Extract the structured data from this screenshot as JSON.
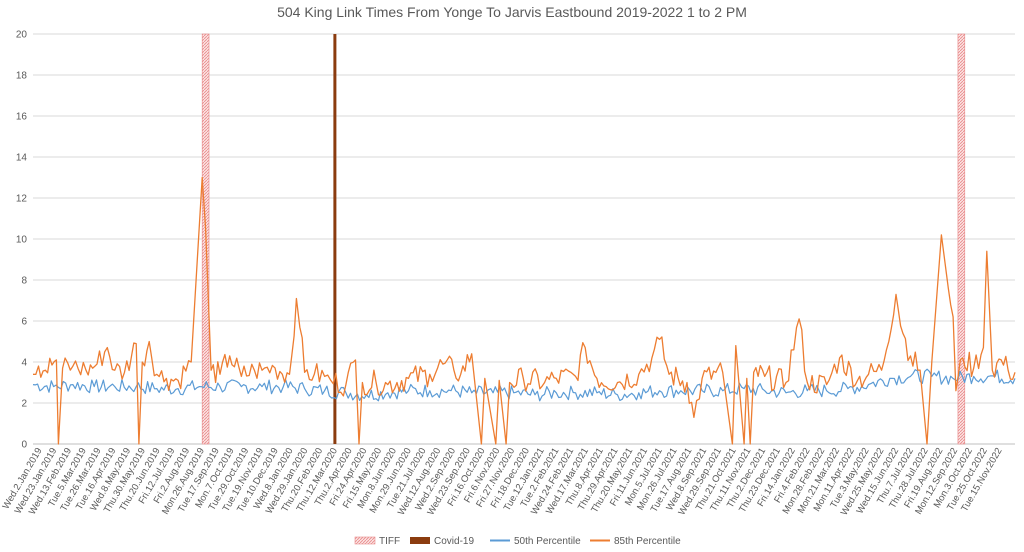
{
  "chart_data": {
    "type": "line",
    "title": "504 King Link Times From Yonge To Jarvis Eastbound 2019-2022 1 to 2 PM",
    "xlabel": "",
    "ylabel": "",
    "ylim": [
      0,
      20
    ],
    "y_ticks": [
      0,
      2,
      4,
      6,
      8,
      10,
      12,
      14,
      16,
      18,
      20
    ],
    "grid": true,
    "legend_position": "bottom",
    "x_range": [
      "2019-01-02",
      "2022-11-30"
    ],
    "x_tick_labels": [
      "Wed.2.Jan.2019",
      "Wed.23.Jan.2019",
      "Wed.13.Feb.2019",
      "Tue.5.Mar.2019",
      "Tue.26.Mar.2019",
      "Tue.16.Apr.2019",
      "Wed.8.May.2019",
      "Thu.30.May.2019",
      "Thu.20.Jun.2019",
      "Fri.12.Jul.2019",
      "Fri.2.Aug.2019",
      "Mon.26.Aug.2019",
      "Tue.17.Sep.2019",
      "Mon.7.Oct.2019",
      "Tue.29.Oct.2019",
      "Tue.19.Nov.2019",
      "Tue.10.Dec.2019",
      "Wed.8.Jan.2020",
      "Wed.29.Jan.2020",
      "Thu.20.Feb.2020",
      "Thu.12.Mar.2020",
      "Thu.2.Apr.2020",
      "Fri.24.Apr.2020",
      "Fri.15.May.2020",
      "Mon.8.Jun.2020",
      "Mon.29.Jun.2020",
      "Tue.21.Jul.2020",
      "Wed.12.Aug.2020",
      "Wed.2.Sep.2020",
      "Wed.23.Sep.2020",
      "Fri.16.Oct.2020",
      "Fri.6.Nov.2020",
      "Fri.27.Nov.2020",
      "Fri.18.Dec.2020",
      "Tue.12.Jan.2021",
      "Tue.2.Feb.2021",
      "Wed.24.Feb.2021",
      "Wed.17.Mar.2021",
      "Thu.8.Apr.2021",
      "Thu.29.Apr.2021",
      "Thu.20.May.2021",
      "Fri.11.Jun.2021",
      "Mon.5.Jul.2021",
      "Mon.26.Jul.2021",
      "Tue.17.Aug.2021",
      "Wed.8.Sep.2021",
      "Wed.29.Sep.2021",
      "Thu.21.Oct.2021",
      "Thu.11.Nov.2021",
      "Thu.2.Dec.2021",
      "Thu.23.Dec.2021",
      "Fri.14.Jan.2022",
      "Fri.4.Feb.2022",
      "Mon.28.Feb.2022",
      "Mon.21.Mar.2022",
      "Mon.11.Apr.2022",
      "Tue.3.May.2022",
      "Wed.25.May.2022",
      "Wed.15.Jun.2022",
      "Thu.7.Jul.2022",
      "Thu.28.Jul.2022",
      "Fri.19.Aug.2022",
      "Mon.12.Sep.2022",
      "Mon.3.Oct.2022",
      "Tue.25.Oct.2022",
      "Tue.15.Nov.2022"
    ],
    "series": [
      {
        "name": "TIFF",
        "kind": "band",
        "color": "#f4a7a7",
        "periods": [
          [
            "2019-09-05",
            "2019-09-15"
          ],
          [
            "2022-09-08",
            "2022-09-18"
          ]
        ]
      },
      {
        "name": "Covid-19",
        "kind": "marker",
        "color": "#8b3c0f",
        "date": "2020-03-16"
      },
      {
        "name": "50th Percentile",
        "kind": "line",
        "color": "#5b9bd5",
        "points": [
          [
            "2019-01-02",
            2.9
          ],
          [
            "2019-02-01",
            2.8
          ],
          [
            "2019-03-01",
            2.9
          ],
          [
            "2019-04-01",
            2.8
          ],
          [
            "2019-05-01",
            2.8
          ],
          [
            "2019-06-01",
            2.8
          ],
          [
            "2019-07-01",
            2.7
          ],
          [
            "2019-08-01",
            2.7
          ],
          [
            "2019-09-01",
            2.8
          ],
          [
            "2019-10-01",
            2.8
          ],
          [
            "2019-11-01",
            2.8
          ],
          [
            "2019-12-01",
            2.8
          ],
          [
            "2020-01-01",
            2.8
          ],
          [
            "2020-02-01",
            2.7
          ],
          [
            "2020-03-01",
            2.6
          ],
          [
            "2020-04-01",
            2.5
          ],
          [
            "2020-05-01",
            2.4
          ],
          [
            "2020-06-01",
            2.5
          ],
          [
            "2020-07-01",
            2.6
          ],
          [
            "2020-08-01",
            2.6
          ],
          [
            "2020-09-01",
            2.6
          ],
          [
            "2020-10-01",
            2.5
          ],
          [
            "2020-11-01",
            2.5
          ],
          [
            "2020-12-01",
            2.5
          ],
          [
            "2021-01-01",
            2.4
          ],
          [
            "2021-02-01",
            2.5
          ],
          [
            "2021-03-01",
            2.5
          ],
          [
            "2021-04-01",
            2.5
          ],
          [
            "2021-05-01",
            2.4
          ],
          [
            "2021-06-01",
            2.5
          ],
          [
            "2021-07-01",
            2.6
          ],
          [
            "2021-08-01",
            2.6
          ],
          [
            "2021-09-01",
            2.6
          ],
          [
            "2021-10-01",
            2.6
          ],
          [
            "2021-11-01",
            2.7
          ],
          [
            "2021-12-01",
            2.6
          ],
          [
            "2022-01-01",
            2.5
          ],
          [
            "2022-02-01",
            2.6
          ],
          [
            "2022-03-01",
            2.6
          ],
          [
            "2022-04-01",
            2.7
          ],
          [
            "2022-05-01",
            2.9
          ],
          [
            "2022-06-01",
            3.2
          ],
          [
            "2022-07-01",
            3.3
          ],
          [
            "2022-08-01",
            3.3
          ],
          [
            "2022-09-01",
            3.2
          ],
          [
            "2022-10-01",
            3.3
          ],
          [
            "2022-11-01",
            3.3
          ],
          [
            "2022-11-30",
            3.2
          ]
        ]
      },
      {
        "name": "85th Percentile",
        "kind": "line",
        "color": "#ed7d31",
        "points": [
          [
            "2019-01-02",
            3.4
          ],
          [
            "2019-01-10",
            3.8
          ],
          [
            "2019-01-20",
            3.6
          ],
          [
            "2019-02-05",
            4.1
          ],
          [
            "2019-02-08",
            0
          ],
          [
            "2019-02-14",
            3.7
          ],
          [
            "2019-03-01",
            3.8
          ],
          [
            "2019-03-20",
            3.6
          ],
          [
            "2019-04-05",
            3.9
          ],
          [
            "2019-04-20",
            4.7
          ],
          [
            "2019-05-01",
            3.6
          ],
          [
            "2019-05-15",
            3.5
          ],
          [
            "2019-06-01",
            4.9
          ],
          [
            "2019-06-05",
            0
          ],
          [
            "2019-06-10",
            4.0
          ],
          [
            "2019-06-20",
            5.0
          ],
          [
            "2019-07-01",
            3.4
          ],
          [
            "2019-07-15",
            3.2
          ],
          [
            "2019-08-01",
            3.1
          ],
          [
            "2019-08-20",
            4.0
          ],
          [
            "2019-09-05",
            13.0
          ],
          [
            "2019-09-10",
            10.5
          ],
          [
            "2019-09-18",
            3.6
          ],
          [
            "2019-10-01",
            3.4
          ],
          [
            "2019-10-15",
            4.3
          ],
          [
            "2019-11-01",
            3.3
          ],
          [
            "2019-11-20",
            3.6
          ],
          [
            "2019-12-01",
            3.6
          ],
          [
            "2019-12-20",
            3.7
          ],
          [
            "2020-01-10",
            3.4
          ],
          [
            "2020-01-20",
            7.1
          ],
          [
            "2020-01-25",
            5.7
          ],
          [
            "2020-02-01",
            3.5
          ],
          [
            "2020-02-15",
            3.4
          ],
          [
            "2020-03-01",
            3.3
          ],
          [
            "2020-03-10",
            3.1
          ],
          [
            "2020-04-01",
            2.9
          ],
          [
            "2020-04-15",
            4.1
          ],
          [
            "2020-04-20",
            0
          ],
          [
            "2020-04-25",
            3.0
          ],
          [
            "2020-05-15",
            3.0
          ],
          [
            "2020-06-01",
            2.9
          ],
          [
            "2020-07-01",
            3.2
          ],
          [
            "2020-08-01",
            3.4
          ],
          [
            "2020-08-20",
            3.9
          ],
          [
            "2020-09-05",
            3.6
          ],
          [
            "2020-09-15",
            3.4
          ],
          [
            "2020-10-01",
            4.4
          ],
          [
            "2020-10-15",
            0
          ],
          [
            "2020-10-20",
            3.2
          ],
          [
            "2020-11-05",
            0
          ],
          [
            "2020-11-10",
            3.1
          ],
          [
            "2020-11-20",
            0
          ],
          [
            "2020-11-25",
            3.0
          ],
          [
            "2020-12-15",
            3.2
          ],
          [
            "2021-01-15",
            3.0
          ],
          [
            "2021-02-01",
            3.2
          ],
          [
            "2021-03-01",
            3.3
          ],
          [
            "2021-03-15",
            4.7
          ],
          [
            "2021-04-01",
            3.2
          ],
          [
            "2021-05-01",
            3.0
          ],
          [
            "2021-06-01",
            3.4
          ],
          [
            "2021-06-20",
            4.2
          ],
          [
            "2021-07-01",
            5.1
          ],
          [
            "2021-07-15",
            3.4
          ],
          [
            "2021-08-10",
            3.0
          ],
          [
            "2021-08-20",
            1.3
          ],
          [
            "2021-09-01",
            3.2
          ],
          [
            "2021-10-01",
            3.5
          ],
          [
            "2021-10-15",
            0
          ],
          [
            "2021-10-20",
            4.8
          ],
          [
            "2021-11-01",
            0
          ],
          [
            "2021-11-05",
            3.2
          ],
          [
            "2021-11-10",
            0
          ],
          [
            "2021-11-15",
            3.5
          ],
          [
            "2021-12-01",
            3.3
          ],
          [
            "2022-01-01",
            3.0
          ],
          [
            "2022-01-20",
            6.1
          ],
          [
            "2022-02-01",
            3.0
          ],
          [
            "2022-03-01",
            2.9
          ],
          [
            "2022-03-20",
            4.2
          ],
          [
            "2022-04-15",
            3.1
          ],
          [
            "2022-05-01",
            3.4
          ],
          [
            "2022-05-20",
            3.6
          ],
          [
            "2022-06-10",
            7.3
          ],
          [
            "2022-06-20",
            5.4
          ],
          [
            "2022-07-01",
            4.3
          ],
          [
            "2022-07-15",
            3.6
          ],
          [
            "2022-07-25",
            0
          ],
          [
            "2022-08-01",
            4.0
          ],
          [
            "2022-08-15",
            10.2
          ],
          [
            "2022-08-25",
            7.6
          ],
          [
            "2022-09-01",
            6.2
          ],
          [
            "2022-09-05",
            2.6
          ],
          [
            "2022-09-15",
            4.2
          ],
          [
            "2022-10-01",
            3.7
          ],
          [
            "2022-10-15",
            4.7
          ],
          [
            "2022-10-20",
            9.4
          ],
          [
            "2022-10-28",
            3.6
          ],
          [
            "2022-11-10",
            4.1
          ],
          [
            "2022-11-20",
            3.6
          ],
          [
            "2022-11-30",
            3.5
          ]
        ]
      }
    ]
  }
}
